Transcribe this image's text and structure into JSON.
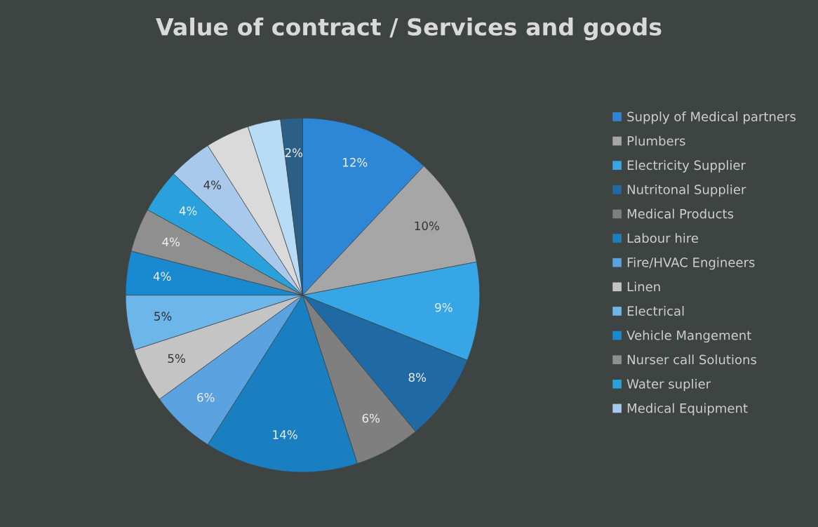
{
  "chart_data": {
    "type": "pie",
    "title": "Value of contract / Services and goods",
    "categories": [
      "Supply of Medical partners",
      "Plumbers",
      "Electricity Supplier",
      "Nutritonal Supplier",
      "Medical Products",
      "Labour hire",
      "Fire/HVAC Engineers",
      "Linen",
      "Electrical",
      "Vehicle Mangement",
      "Nurser call Solutions",
      "Water suplier",
      "Medical Equipment",
      null,
      null,
      null
    ],
    "values": [
      12,
      10,
      9,
      8,
      6,
      14,
      6,
      5,
      5,
      4,
      4,
      4,
      4,
      4,
      3,
      2
    ],
    "value_labels": [
      "12%",
      "10%",
      "9%",
      "8%",
      "6%",
      "14%",
      "6%",
      "5%",
      "5%",
      "4%",
      "4%",
      "4%",
      "4%",
      null,
      null,
      "2%"
    ],
    "colors": [
      "#2e86d6",
      "#a6a6a6",
      "#36a6e6",
      "#1f6aa5",
      "#7f7f7f",
      "#1a7fc0",
      "#5aa3e0",
      "#c4c4c4",
      "#6cb6ea",
      "#1a8ad0",
      "#8f8f8f",
      "#2aa0dc",
      "#a8c8ec",
      "#dadada",
      "#b8dcf5",
      "#2c5f85"
    ],
    "legend": "right"
  }
}
